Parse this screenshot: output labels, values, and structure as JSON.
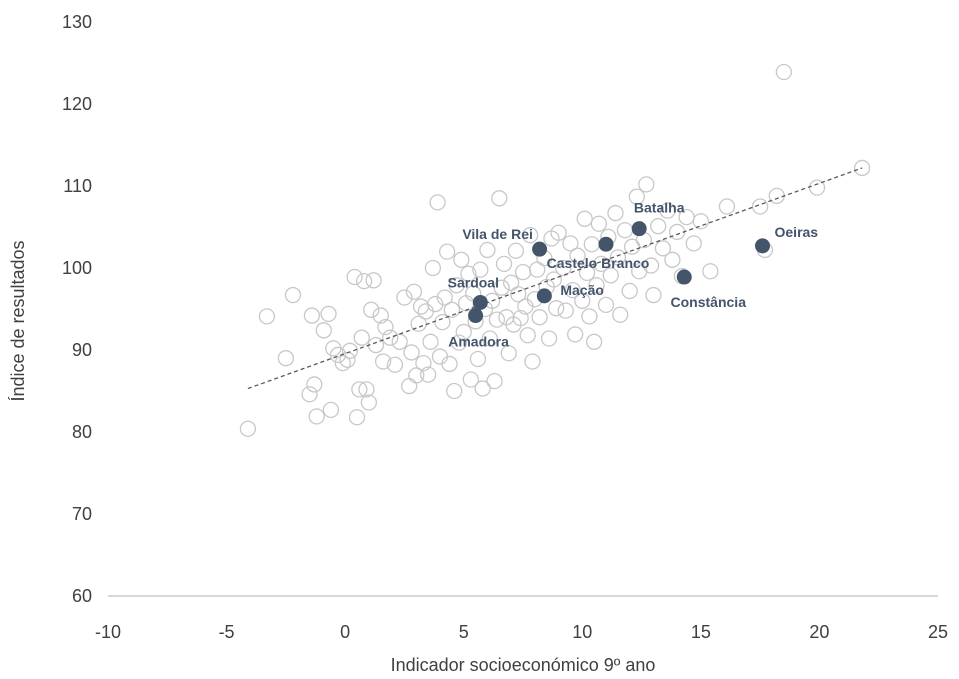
{
  "chart_data": {
    "type": "scatter",
    "xlabel": "Indicador socioeconómico 9º ano",
    "ylabel": "Índice de resultados",
    "xlim": [
      -10,
      25
    ],
    "ylim": [
      60,
      130
    ],
    "xticks": [
      -10,
      -5,
      0,
      5,
      10,
      15,
      20,
      25
    ],
    "yticks": [
      60,
      70,
      80,
      90,
      100,
      110,
      120,
      130
    ],
    "grid": false,
    "trendline": {
      "style": "dashed",
      "x": [
        -4.1,
        21.8
      ],
      "y": [
        85.3,
        112.2
      ]
    },
    "colors": {
      "background_points": "#c8c8c8",
      "highlight_points": "#44546a",
      "trend": "#595959",
      "axis": "#bfbfbf"
    },
    "series": [
      {
        "points": [
          [
            -4.1,
            80.4
          ],
          [
            -3.3,
            94.1
          ],
          [
            -2.5,
            89.0
          ],
          [
            -2.2,
            96.7
          ],
          [
            -1.5,
            84.6
          ],
          [
            -1.3,
            85.8
          ],
          [
            -1.2,
            81.9
          ],
          [
            -1.4,
            94.2
          ],
          [
            -0.9,
            92.4
          ],
          [
            -0.7,
            94.4
          ],
          [
            -0.6,
            82.7
          ],
          [
            -0.5,
            90.2
          ],
          [
            -0.3,
            89.4
          ],
          [
            -0.1,
            88.4
          ],
          [
            0.1,
            88.8
          ],
          [
            0.2,
            89.9
          ],
          [
            0.4,
            98.9
          ],
          [
            0.5,
            81.8
          ],
          [
            0.6,
            85.2
          ],
          [
            0.7,
            91.5
          ],
          [
            0.8,
            98.4
          ],
          [
            0.9,
            85.2
          ],
          [
            1.0,
            83.6
          ],
          [
            1.1,
            94.9
          ],
          [
            1.2,
            98.5
          ],
          [
            1.3,
            90.6
          ],
          [
            1.5,
            94.2
          ],
          [
            1.6,
            88.6
          ],
          [
            1.7,
            92.8
          ],
          [
            1.9,
            91.5
          ],
          [
            2.1,
            88.2
          ],
          [
            2.3,
            91.0
          ],
          [
            2.5,
            96.4
          ],
          [
            2.7,
            85.6
          ],
          [
            2.8,
            89.7
          ],
          [
            2.9,
            97.1
          ],
          [
            3.0,
            86.9
          ],
          [
            3.1,
            93.2
          ],
          [
            3.2,
            95.3
          ],
          [
            3.3,
            88.4
          ],
          [
            3.4,
            94.7
          ],
          [
            3.5,
            87.0
          ],
          [
            3.6,
            91.0
          ],
          [
            3.7,
            100.0
          ],
          [
            3.8,
            95.6
          ],
          [
            3.9,
            108.0
          ],
          [
            4.0,
            89.2
          ],
          [
            4.1,
            93.4
          ],
          [
            4.2,
            96.4
          ],
          [
            4.3,
            102.0
          ],
          [
            4.4,
            88.3
          ],
          [
            4.5,
            94.9
          ],
          [
            4.6,
            85.0
          ],
          [
            4.7,
            97.9
          ],
          [
            4.8,
            90.9
          ],
          [
            4.9,
            101.0
          ],
          [
            5.0,
            92.2
          ],
          [
            5.1,
            95.7
          ],
          [
            5.2,
            99.3
          ],
          [
            5.3,
            86.4
          ],
          [
            5.4,
            96.9
          ],
          [
            5.5,
            93.5
          ],
          [
            5.6,
            88.9
          ],
          [
            5.7,
            99.8
          ],
          [
            5.8,
            85.3
          ],
          [
            5.9,
            95.0
          ],
          [
            6.0,
            102.2
          ],
          [
            6.1,
            91.4
          ],
          [
            6.2,
            96.0
          ],
          [
            6.3,
            86.2
          ],
          [
            6.4,
            93.7
          ],
          [
            6.5,
            108.5
          ],
          [
            6.6,
            97.6
          ],
          [
            6.7,
            100.5
          ],
          [
            6.8,
            94.0
          ],
          [
            6.9,
            89.6
          ],
          [
            7.0,
            98.2
          ],
          [
            7.1,
            93.1
          ],
          [
            7.2,
            102.1
          ],
          [
            7.3,
            96.8
          ],
          [
            7.4,
            93.9
          ],
          [
            7.5,
            99.5
          ],
          [
            7.6,
            95.3
          ],
          [
            7.7,
            91.8
          ],
          [
            7.8,
            104.0
          ],
          [
            7.9,
            88.6
          ],
          [
            8.0,
            96.2
          ],
          [
            8.1,
            99.8
          ],
          [
            8.2,
            94.0
          ],
          [
            8.4,
            101.2
          ],
          [
            8.5,
            97.7
          ],
          [
            8.6,
            91.4
          ],
          [
            8.7,
            103.6
          ],
          [
            8.8,
            98.6
          ],
          [
            8.9,
            95.1
          ],
          [
            9.0,
            104.3
          ],
          [
            9.2,
            100.0
          ],
          [
            9.3,
            94.8
          ],
          [
            9.5,
            103.0
          ],
          [
            9.6,
            97.3
          ],
          [
            9.7,
            91.9
          ],
          [
            9.8,
            101.5
          ],
          [
            10.0,
            96.0
          ],
          [
            10.1,
            106.0
          ],
          [
            10.2,
            99.4
          ],
          [
            10.3,
            94.1
          ],
          [
            10.4,
            102.9
          ],
          [
            10.5,
            91.0
          ],
          [
            10.6,
            97.9
          ],
          [
            10.7,
            105.4
          ],
          [
            10.8,
            100.5
          ],
          [
            11.0,
            95.5
          ],
          [
            11.1,
            103.8
          ],
          [
            11.2,
            99.1
          ],
          [
            11.4,
            106.7
          ],
          [
            11.5,
            101.3
          ],
          [
            11.6,
            94.3
          ],
          [
            11.8,
            104.6
          ],
          [
            12.0,
            97.2
          ],
          [
            12.1,
            102.6
          ],
          [
            12.3,
            108.7
          ],
          [
            12.4,
            99.6
          ],
          [
            12.6,
            103.4
          ],
          [
            12.7,
            110.2
          ],
          [
            12.9,
            100.3
          ],
          [
            13.0,
            96.7
          ],
          [
            13.2,
            105.1
          ],
          [
            13.4,
            102.4
          ],
          [
            13.6,
            107.0
          ],
          [
            13.8,
            101.0
          ],
          [
            14.0,
            104.4
          ],
          [
            14.2,
            99.0
          ],
          [
            14.4,
            106.2
          ],
          [
            14.7,
            103.0
          ],
          [
            15.0,
            105.7
          ],
          [
            15.4,
            99.6
          ],
          [
            16.1,
            107.5
          ],
          [
            17.5,
            107.5
          ],
          [
            17.7,
            102.2
          ],
          [
            18.2,
            108.8
          ],
          [
            18.5,
            123.9
          ],
          [
            19.9,
            109.8
          ],
          [
            21.8,
            112.2
          ]
        ]
      },
      {
        "highlighted": true,
        "points": [
          {
            "label": "Vila de Rei",
            "x": 8.2,
            "y": 102.3
          },
          {
            "label": "Batalha",
            "x": 12.4,
            "y": 104.8
          },
          {
            "label": "Oeiras",
            "x": 17.6,
            "y": 102.7
          },
          {
            "label": "Castelo Branco",
            "x": 11.0,
            "y": 102.9
          },
          {
            "label": "Constância",
            "x": 14.3,
            "y": 98.9
          },
          {
            "label": "Sardoal",
            "x": 5.7,
            "y": 95.8
          },
          {
            "label": "Mação",
            "x": 8.4,
            "y": 96.6
          },
          {
            "label": "Amadora",
            "x": 5.5,
            "y": 94.2
          }
        ]
      }
    ]
  }
}
